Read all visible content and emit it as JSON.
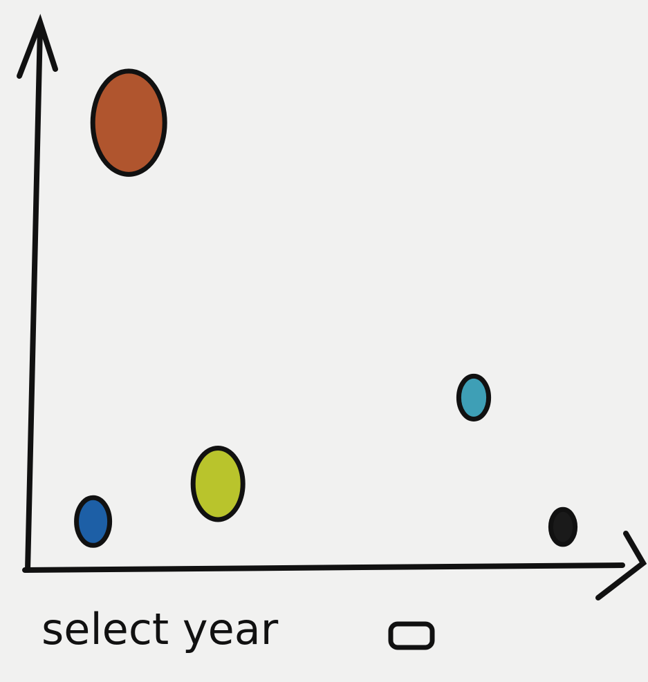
{
  "chart_data": {
    "type": "bubble",
    "x": [
      17,
      11,
      32,
      75,
      90
    ],
    "values": [
      83,
      9,
      16,
      32,
      8
    ],
    "sizes": [
      65,
      30,
      45,
      27,
      22
    ],
    "colors": [
      "#b0552e",
      "#1d5fa6",
      "#b9c42c",
      "#3e9fb6",
      "#1a1a1a"
    ],
    "xlim": [
      0,
      100
    ],
    "ylim": [
      0,
      100
    ]
  },
  "control": {
    "label": "select year"
  }
}
